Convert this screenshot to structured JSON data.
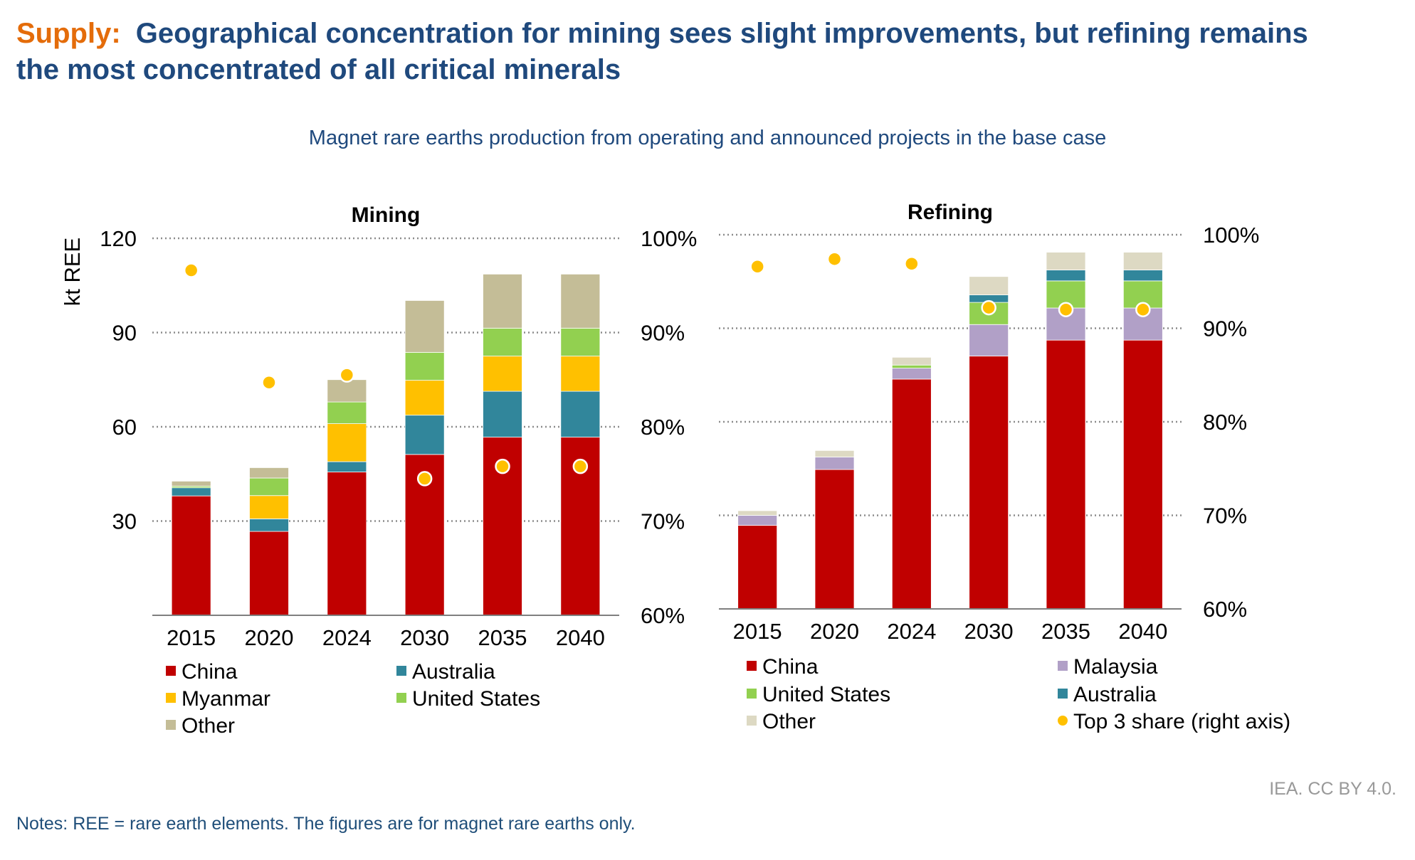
{
  "header": {
    "prefix": "Supply:",
    "title_line1": "Geographical concentration for mining sees slight improvements, but refining remains",
    "title_line2": "the most concentrated of all critical minerals",
    "subtitle": "Magnet rare earths production from operating and announced projects in the base case"
  },
  "colors": {
    "prefix": "#e46c0a",
    "title": "#1f497d",
    "China": "#c00000",
    "Australia": "#31869b",
    "Myanmar": "#ffc000",
    "United States": "#92d050",
    "Other_mining": "#c4bd97",
    "Malaysia": "#b1a0c7",
    "Other_refining": "#ddd9c3",
    "share": "#ffc000"
  },
  "chart_data": [
    {
      "type": "bar",
      "stacked": true,
      "title": "Mining",
      "ylabel": "kt REE",
      "ylim": [
        0,
        120
      ],
      "yticks": [
        "30",
        "60",
        "90",
        "120"
      ],
      "y2lim": [
        60,
        100
      ],
      "y2ticks": [
        "60%",
        "70%",
        "80%",
        "90%",
        "100%"
      ],
      "grid": true,
      "categories": [
        "2015",
        "2020",
        "2024",
        "2030",
        "2035",
        "2040"
      ],
      "series": [
        {
          "name": "China",
          "color_key": "China",
          "values": [
            38,
            26.7,
            45.6,
            51.2,
            56.7,
            56.7
          ]
        },
        {
          "name": "Australia",
          "color_key": "Australia",
          "values": [
            2.6,
            4.0,
            3.3,
            12.5,
            14.6,
            14.6
          ]
        },
        {
          "name": "Myanmar",
          "color_key": "Myanmar",
          "values": [
            0,
            7.4,
            12.1,
            11.1,
            11.2,
            11.2
          ]
        },
        {
          "name": "United States",
          "color_key": "United States",
          "values": [
            0.5,
            5.6,
            6.9,
            8.9,
            8.9,
            8.9
          ]
        },
        {
          "name": "Other",
          "color_key": "Other_mining",
          "values": [
            1.6,
            3.3,
            7.1,
            16.5,
            17.2,
            17.2
          ]
        }
      ],
      "share": {
        "name": "Top 3 share (right axis)",
        "values": [
          96.6,
          84.7,
          85.5,
          74.5,
          75.8,
          75.8
        ]
      },
      "legend": [
        "China",
        "Australia",
        "Myanmar",
        "United States",
        "Other"
      ],
      "legend_position": "bottom"
    },
    {
      "type": "bar",
      "stacked": true,
      "title": "Refining",
      "ylim": [
        0,
        120
      ],
      "y2lim": [
        60,
        100
      ],
      "y2ticks": [
        "60%",
        "70%",
        "80%",
        "90%",
        "100%"
      ],
      "grid": true,
      "categories": [
        "2015",
        "2020",
        "2024",
        "2030",
        "2035",
        "2040"
      ],
      "series": [
        {
          "name": "China",
          "color_key": "China",
          "values": [
            26.8,
            44.7,
            73.7,
            81.1,
            86.2,
            86.2
          ]
        },
        {
          "name": "Malaysia",
          "color_key": "Malaysia",
          "values": [
            3.2,
            4.0,
            3.5,
            10.1,
            10.3,
            10.3
          ]
        },
        {
          "name": "United States",
          "color_key": "United States",
          "values": [
            0,
            0,
            1.0,
            7.1,
            8.7,
            8.7
          ]
        },
        {
          "name": "Australia",
          "color_key": "Australia",
          "values": [
            0,
            0,
            0,
            2.4,
            3.5,
            3.5
          ]
        },
        {
          "name": "Other",
          "color_key": "Other_refining",
          "values": [
            1.5,
            2.1,
            2.5,
            5.9,
            5.7,
            5.7
          ]
        }
      ],
      "share": {
        "name": "Top 3 share (right axis)",
        "values": [
          96.6,
          97.4,
          96.9,
          92.2,
          92.0,
          92.0
        ]
      },
      "legend": [
        "China",
        "Malaysia",
        "United States",
        "Australia",
        "Other",
        "Top 3 share (right axis)"
      ],
      "legend_position": "bottom"
    }
  ],
  "footer": {
    "source": "IEA. CC BY 4.0.",
    "notes": "Notes: REE = rare earth elements. The figures are for magnet rare earths only."
  }
}
